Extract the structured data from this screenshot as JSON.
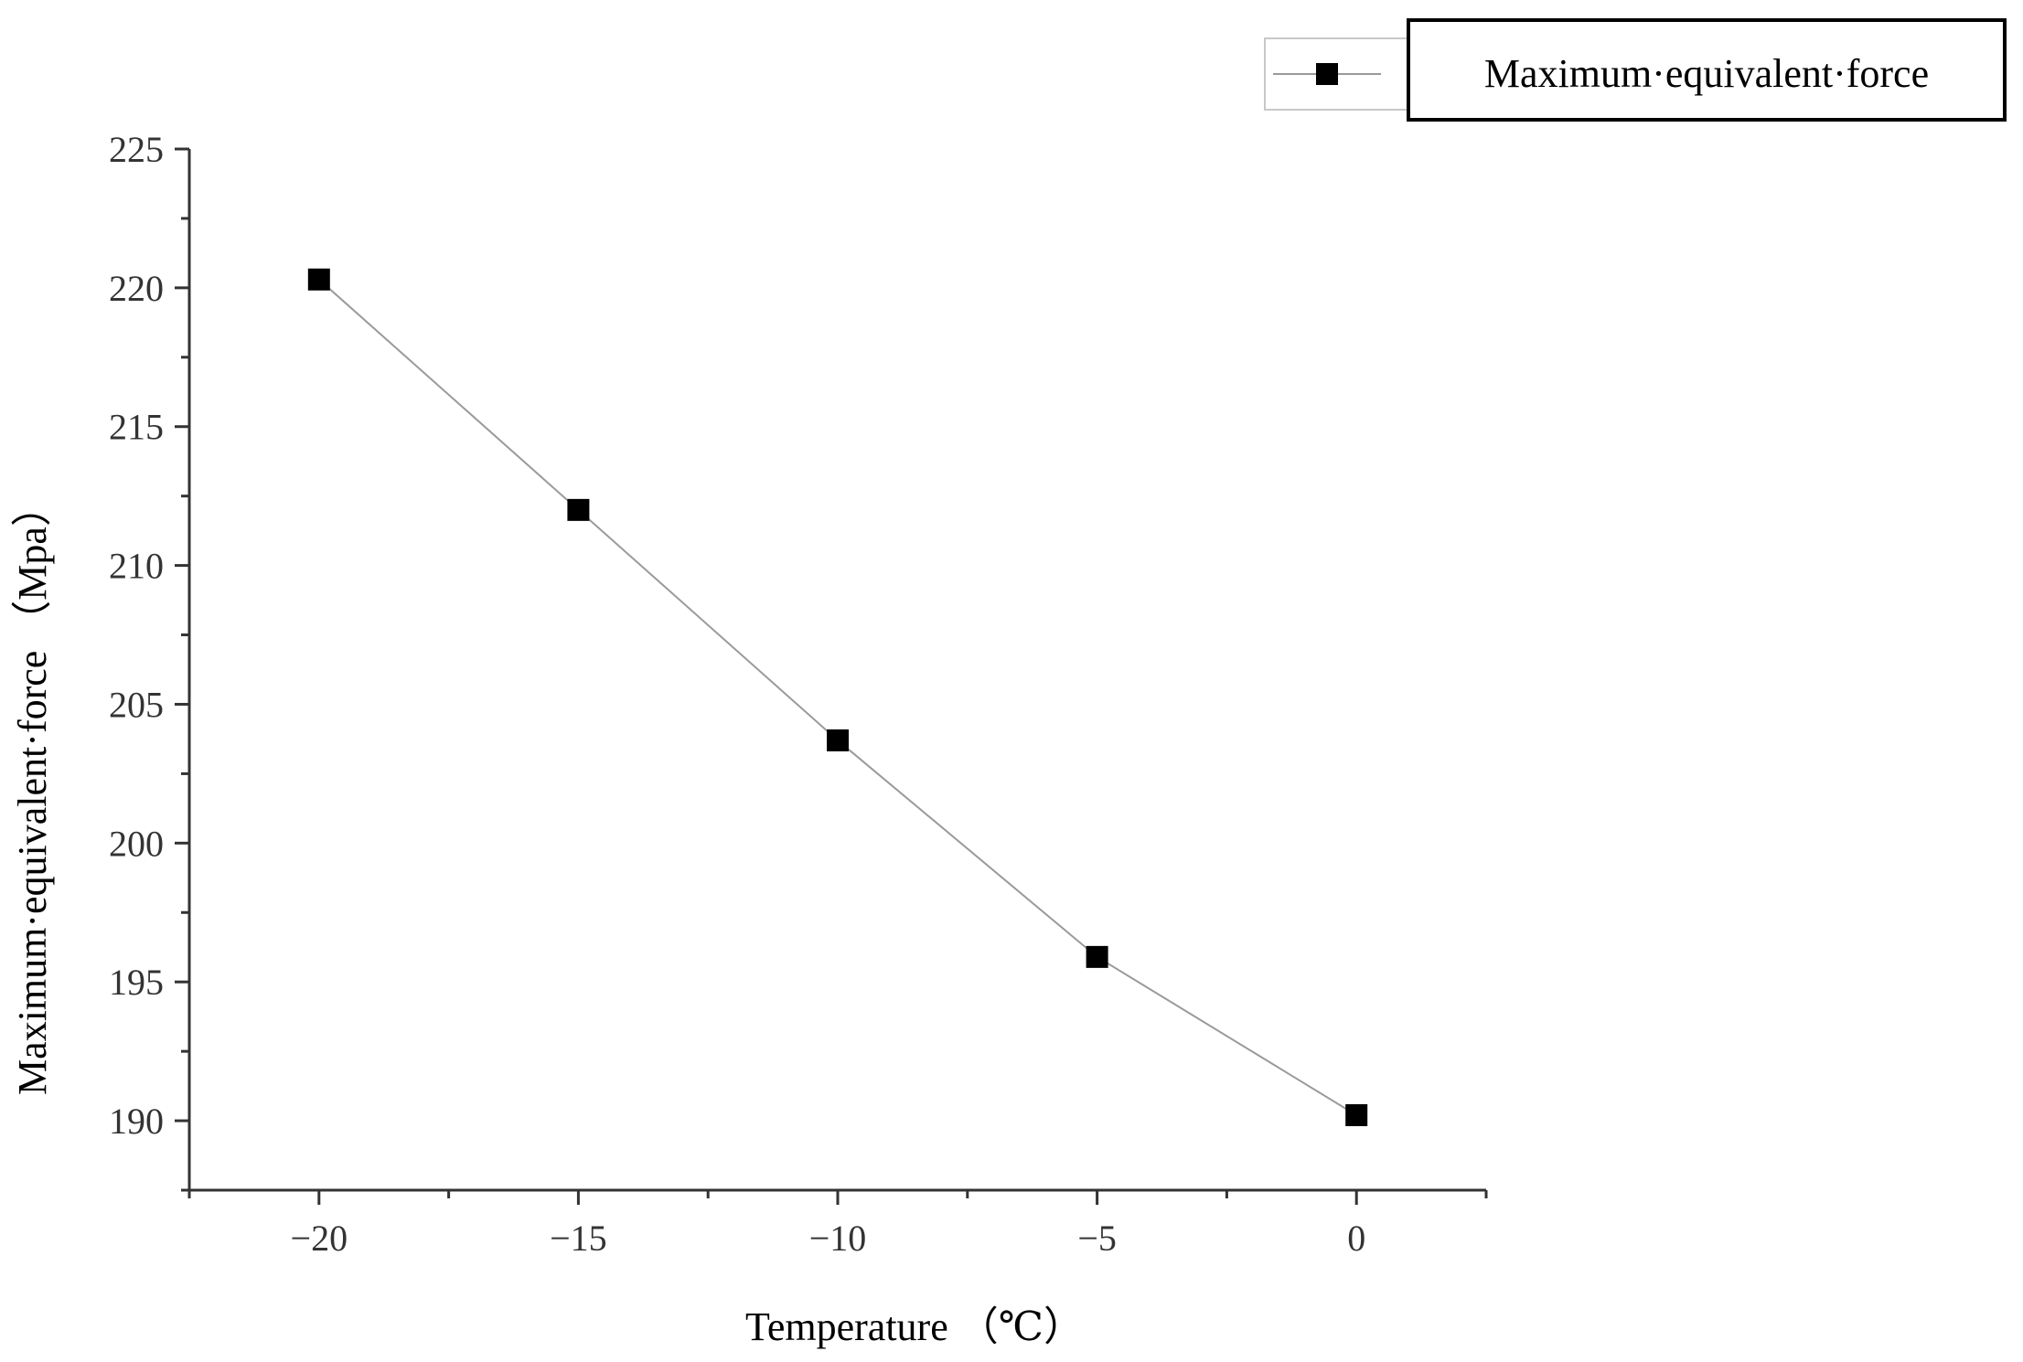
{
  "chart_data": {
    "type": "line",
    "x": [
      -20,
      -15,
      -10,
      -5,
      0
    ],
    "series": [
      {
        "name": "Maximum·equivalent·force",
        "values": [
          220.3,
          212.0,
          203.7,
          195.9,
          190.2
        ]
      }
    ],
    "xlabel": "Temperature （℃）",
    "ylabel": "Maximum·equivalent·force （Mpa）",
    "xlim": [
      -22.5,
      2.5
    ],
    "ylim": [
      187.5,
      225
    ],
    "xticks": [
      "−20",
      "−15",
      "−10",
      "−5",
      "0"
    ],
    "yticks": [
      "190",
      "195",
      "200",
      "205",
      "210",
      "215",
      "220",
      "225"
    ],
    "grid": false,
    "legend": "top-right",
    "marker": "square",
    "line_color": "#9a9a9a",
    "marker_color": "#000000"
  }
}
